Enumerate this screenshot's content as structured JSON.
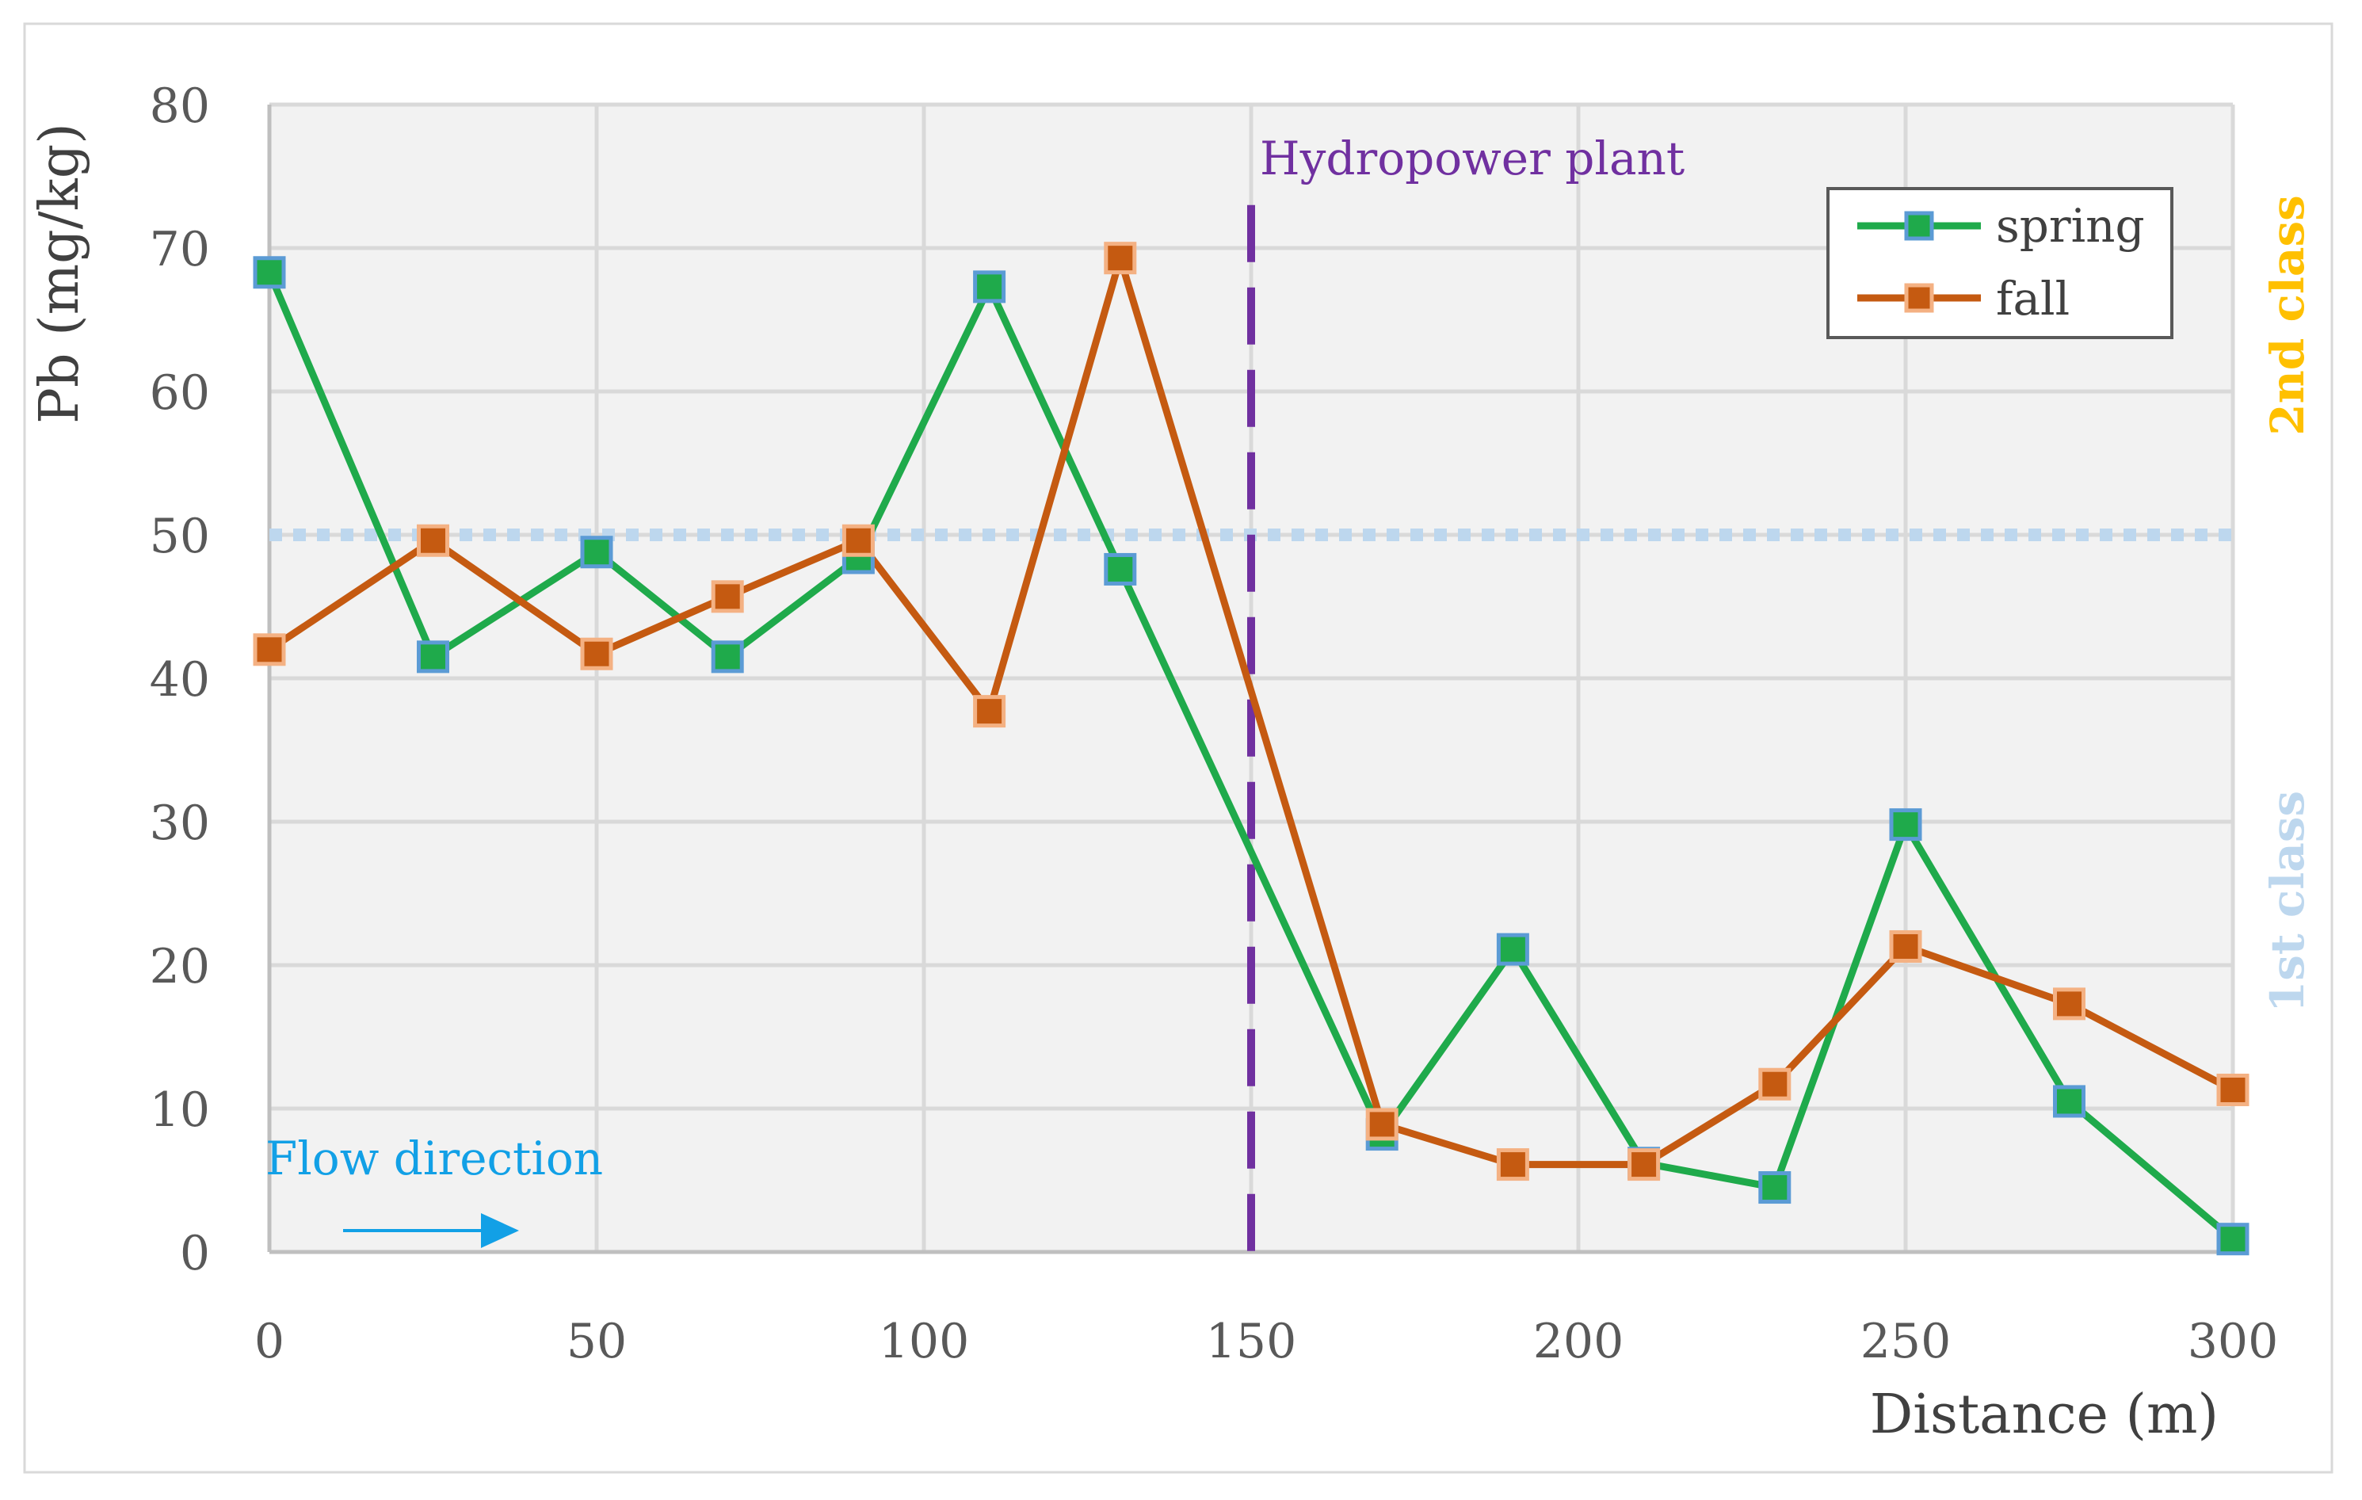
{
  "chart_data": {
    "type": "line",
    "title": "",
    "xlabel": "Distance (m)",
    "ylabel": "Pb (mg/kg)",
    "xlim": [
      0,
      300
    ],
    "ylim": [
      0,
      80
    ],
    "xticks": [
      0,
      50,
      100,
      150,
      200,
      250,
      300
    ],
    "yticks": [
      0,
      10,
      20,
      30,
      40,
      50,
      60,
      70,
      80
    ],
    "grid": true,
    "legend_position": "top-right",
    "series": [
      {
        "name": "spring",
        "line_color": "#1faa4b",
        "marker_fill": "#1faa4b",
        "marker_edge": "#5b9bd5",
        "x": [
          0,
          25,
          50,
          70,
          90,
          110,
          130,
          170,
          190,
          210,
          230,
          250,
          275,
          300
        ],
        "y": [
          68.3,
          41.5,
          48.8,
          41.5,
          48.4,
          67.3,
          47.6,
          8.2,
          21.1,
          6.2,
          4.5,
          29.8,
          10.5,
          0.9
        ]
      },
      {
        "name": "fall",
        "line_color": "#c55a11",
        "marker_fill": "#c55a11",
        "marker_edge": "#f4b183",
        "x": [
          0,
          25,
          50,
          70,
          90,
          110,
          130,
          170,
          190,
          210,
          230,
          250,
          275,
          300
        ],
        "y": [
          42.0,
          49.6,
          41.7,
          45.7,
          49.6,
          37.7,
          69.3,
          8.9,
          6.1,
          6.1,
          11.7,
          21.3,
          17.3,
          11.3
        ]
      }
    ],
    "reference_lines": [
      {
        "orientation": "horizontal",
        "value": 50,
        "color": "#bdd7ee",
        "style": "dotted"
      },
      {
        "orientation": "vertical",
        "value": 150,
        "y_top": 73,
        "color": "#7030a0",
        "style": "dashed",
        "label": "Hydropower plant"
      }
    ],
    "annotations": {
      "flow_label": "Flow direction",
      "flow_color": "#12a0e6",
      "class_2_label": "2nd class",
      "class_2_color": "#ffc000",
      "class_1_label": "1st class",
      "class_1_color": "#bdd7ee"
    }
  }
}
